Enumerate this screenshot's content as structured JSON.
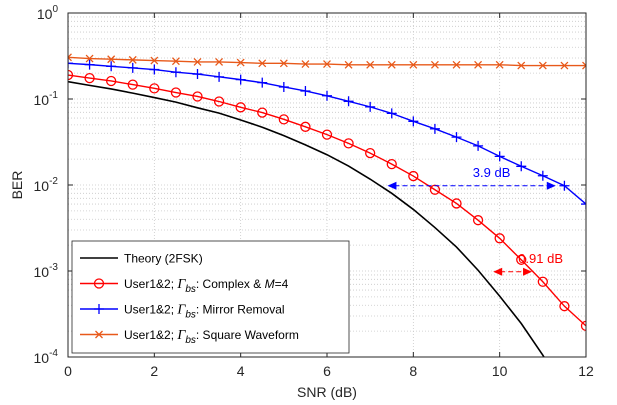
{
  "chart_data": {
    "type": "line",
    "xlabel": "SNR (dB)",
    "ylabel": "BER",
    "xlim": [
      0,
      12
    ],
    "ylim": [
      0.0001,
      1
    ],
    "yscale": "log",
    "grid": "on (major and minor, dotted)",
    "legend_position": "bottom-left",
    "x_ticks": [
      "0",
      "2",
      "4",
      "6",
      "8",
      "10",
      "12"
    ],
    "y_ticks": [
      {
        "base": "10",
        "exp": "0",
        "value": 1
      },
      {
        "base": "10",
        "exp": "-1",
        "value": 0.1
      },
      {
        "base": "10",
        "exp": "-2",
        "value": 0.01
      },
      {
        "base": "10",
        "exp": "-3",
        "value": 0.001
      },
      {
        "base": "10",
        "exp": "-4",
        "value": 0.0001
      }
    ],
    "series": [
      {
        "name": "Theory (2FSK)",
        "color": "#000000",
        "marker": "none",
        "x": [
          0,
          0.5,
          1,
          1.5,
          2,
          2.5,
          3,
          3.5,
          4,
          4.5,
          5,
          5.5,
          6,
          6.5,
          7,
          7.5,
          8,
          8.5,
          9,
          9.5,
          10,
          10.5,
          11,
          11.5
        ],
        "y": [
          0.159,
          0.144,
          0.131,
          0.117,
          0.104,
          0.092,
          0.079,
          0.0685,
          0.057,
          0.047,
          0.0375,
          0.0293,
          0.0225,
          0.0166,
          0.0117,
          0.008,
          0.0052,
          0.0032,
          0.0019,
          0.00102,
          0.00051,
          0.000245,
          0.000105,
          4.08e-05
        ]
      },
      {
        "name": "User1&2; Γbs: Complex & M=4",
        "color": "#ff0000",
        "marker": "circle",
        "x": [
          0,
          0.5,
          1,
          1.5,
          2,
          2.5,
          3,
          3.5,
          4,
          4.5,
          5,
          5.5,
          6,
          6.5,
          7,
          7.5,
          8,
          8.5,
          9,
          9.5,
          10,
          10.5,
          11,
          11.5,
          12
        ],
        "y": [
          0.19,
          0.175,
          0.162,
          0.147,
          0.133,
          0.119,
          0.107,
          0.0935,
          0.08,
          0.0695,
          0.058,
          0.0475,
          0.0385,
          0.0305,
          0.0235,
          0.0175,
          0.0127,
          0.0088,
          0.0061,
          0.0039,
          0.0024,
          0.00135,
          0.00075,
          0.00039,
          0.00023
        ]
      },
      {
        "name": "User1&2; Γbs: Mirror Removal",
        "color": "#0000ff",
        "marker": "plus",
        "x": [
          0,
          0.5,
          1,
          1.5,
          2,
          2.5,
          3,
          3.5,
          4,
          4.5,
          5,
          5.5,
          6,
          6.5,
          7,
          7.5,
          8,
          8.5,
          9,
          9.5,
          10,
          10.5,
          11,
          11.5,
          12
        ],
        "y": [
          0.26,
          0.251,
          0.24,
          0.23,
          0.22,
          0.205,
          0.195,
          0.181,
          0.168,
          0.155,
          0.138,
          0.124,
          0.109,
          0.094,
          0.081,
          0.068,
          0.055,
          0.045,
          0.036,
          0.0285,
          0.0215,
          0.0165,
          0.0128,
          0.0098,
          0.006
        ]
      },
      {
        "name": "User1&2; Γbs: Square Waveform",
        "color": "#e8591a",
        "marker": "x",
        "x": [
          0,
          0.5,
          1,
          1.5,
          2,
          2.5,
          3,
          3.5,
          4,
          4.5,
          5,
          5.5,
          6,
          6.5,
          7,
          7.5,
          8,
          8.5,
          9,
          9.5,
          10,
          10.5,
          11,
          11.5,
          12
        ],
        "y": [
          0.305,
          0.295,
          0.29,
          0.285,
          0.28,
          0.275,
          0.27,
          0.27,
          0.265,
          0.26,
          0.26,
          0.255,
          0.255,
          0.25,
          0.25,
          0.25,
          0.25,
          0.25,
          0.25,
          0.25,
          0.25,
          0.245,
          0.245,
          0.245,
          0.245
        ]
      }
    ],
    "legend": [
      {
        "color": "#000000",
        "marker": "none",
        "prefix": "Theory (2FSK)",
        "gamma": "",
        "sub": "",
        "suffix": "",
        "suffix_italic": "",
        "suffix_tail": ""
      },
      {
        "color": "#ff0000",
        "marker": "circle",
        "prefix": "User1&2; ",
        "gamma": "Γ",
        "sub": "bs",
        "suffix": ": Complex & ",
        "suffix_italic": "M",
        "suffix_tail": "=4"
      },
      {
        "color": "#0000ff",
        "marker": "plus",
        "prefix": "User1&2; ",
        "gamma": "Γ",
        "sub": "bs",
        "suffix": ": Mirror Removal",
        "suffix_italic": "",
        "suffix_tail": ""
      },
      {
        "color": "#e8591a",
        "marker": "x",
        "prefix": "User1&2; ",
        "gamma": "Γ",
        "sub": "bs",
        "suffix": ": Square Waveform",
        "suffix_italic": "",
        "suffix_tail": ""
      }
    ],
    "annotations": [
      {
        "text": "3.9 dB",
        "color": "#0000ff",
        "y": 0.0098,
        "x_from": 7.4,
        "x_to": 11.3,
        "style": "dashed"
      },
      {
        "text": "0.91 dB",
        "color": "#ff0000",
        "y": 0.00098,
        "x_from": 9.85,
        "x_to": 10.75,
        "style": "dashed"
      }
    ]
  }
}
